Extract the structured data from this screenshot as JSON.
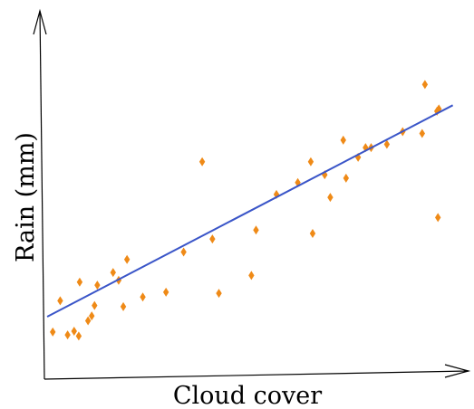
{
  "chart_data": {
    "type": "scatter",
    "xlabel": "Cloud cover",
    "ylabel": "Rain (mm)",
    "grid": false,
    "legend": "none",
    "colors": {
      "points": "#ef8a17",
      "trend": "#3a55c8",
      "axes": "#000000"
    },
    "marker": "diamond",
    "points": [
      {
        "x": 0.6,
        "y": 12.4
      },
      {
        "x": 1.4,
        "y": 20.8
      },
      {
        "x": 2.2,
        "y": 11.6
      },
      {
        "x": 2.9,
        "y": 12.6
      },
      {
        "x": 4.4,
        "y": 15.4
      },
      {
        "x": 3.4,
        "y": 11.3
      },
      {
        "x": 3.5,
        "y": 25.8
      },
      {
        "x": 4.8,
        "y": 16.7
      },
      {
        "x": 5.1,
        "y": 19.5
      },
      {
        "x": 5.4,
        "y": 25.0
      },
      {
        "x": 7.1,
        "y": 28.4
      },
      {
        "x": 7.7,
        "y": 26.3
      },
      {
        "x": 8.2,
        "y": 19.2
      },
      {
        "x": 8.6,
        "y": 31.9
      },
      {
        "x": 10.3,
        "y": 21.8
      },
      {
        "x": 12.8,
        "y": 23.1
      },
      {
        "x": 14.7,
        "y": 33.9
      },
      {
        "x": 16.7,
        "y": 58.2
      },
      {
        "x": 17.8,
        "y": 37.4
      },
      {
        "x": 18.5,
        "y": 22.8
      },
      {
        "x": 22.0,
        "y": 27.6
      },
      {
        "x": 22.5,
        "y": 39.8
      },
      {
        "x": 24.7,
        "y": 49.4
      },
      {
        "x": 27.0,
        "y": 52.6
      },
      {
        "x": 28.4,
        "y": 58.2
      },
      {
        "x": 28.6,
        "y": 38.9
      },
      {
        "x": 29.9,
        "y": 54.7
      },
      {
        "x": 31.9,
        "y": 64.0
      },
      {
        "x": 30.5,
        "y": 48.6
      },
      {
        "x": 32.2,
        "y": 53.8
      },
      {
        "x": 33.5,
        "y": 59.4
      },
      {
        "x": 34.3,
        "y": 62.0
      },
      {
        "x": 34.9,
        "y": 62.0
      },
      {
        "x": 36.6,
        "y": 62.9
      },
      {
        "x": 38.3,
        "y": 66.3
      },
      {
        "x": 40.4,
        "y": 65.8
      },
      {
        "x": 40.7,
        "y": 79.0
      },
      {
        "x": 42.0,
        "y": 71.8
      },
      {
        "x": 42.2,
        "y": 72.4
      },
      {
        "x": 42.1,
        "y": 43.2
      }
    ],
    "trend": {
      "x": [
        0,
        43.7
      ],
      "y": [
        16.5,
        73.4
      ]
    },
    "xlim": [
      -0.3,
      45.4
    ],
    "ylim": [
      -0.3,
      98.8
    ]
  }
}
